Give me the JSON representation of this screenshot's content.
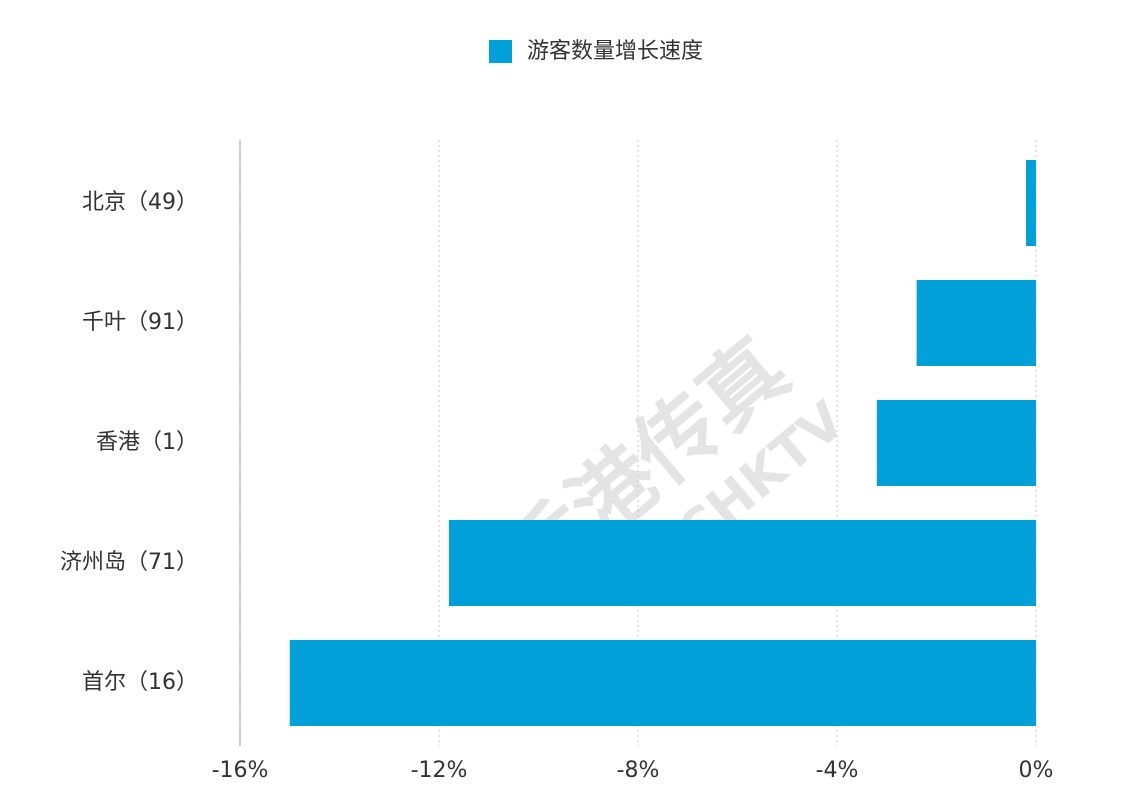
{
  "chart_data": {
    "type": "hbar",
    "series": [
      {
        "name": "游客数量增长速度",
        "color": "#02a0d8",
        "values": [
          -0.2,
          -2.4,
          -3.2,
          -11.8,
          -15.0
        ]
      }
    ],
    "categories": [
      "北京（49）",
      "千叶（91）",
      "香港（1）",
      "济州岛（71）",
      "首尔（16）"
    ],
    "xlim": [
      -16,
      0
    ],
    "xticks": [
      {
        "value": -16,
        "label": "-16%"
      },
      {
        "value": -12,
        "label": "-12%"
      },
      {
        "value": -8,
        "label": "-8%"
      },
      {
        "value": -4,
        "label": "-4%"
      },
      {
        "value": 0,
        "label": "0%"
      }
    ],
    "grid": true,
    "legend": "top",
    "watermark": [
      "香港传真",
      "CNCHKTV"
    ]
  }
}
